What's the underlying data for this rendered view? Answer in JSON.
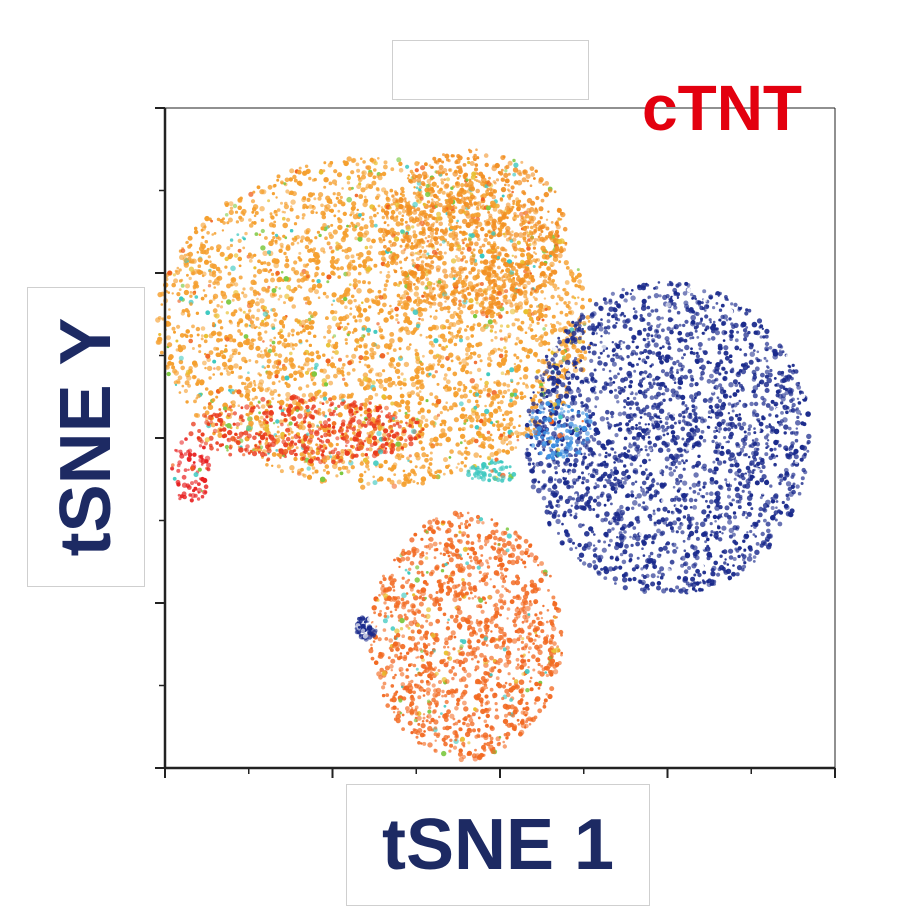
{
  "chart_data": {
    "type": "scatter",
    "title": "cTNT",
    "xlabel": "tSNE 1",
    "ylabel": "tSNE Y",
    "xlim": [
      0,
      8
    ],
    "ylim": [
      0,
      8
    ],
    "x_major_ticks": [
      0,
      2,
      4,
      6,
      8
    ],
    "x_minor_ticks": [
      1,
      3,
      5,
      7
    ],
    "y_major_ticks": [
      0,
      2,
      4,
      6,
      8
    ],
    "y_minor_ticks": [
      1,
      3,
      5,
      7
    ],
    "grid": false,
    "legend": "none",
    "color_scale": [
      "#1a2a8c",
      "#3a8ee0",
      "#3cc8c0",
      "#7cc840",
      "#e8c030",
      "#f5a030",
      "#f06020",
      "#e82020"
    ],
    "clusters": [
      {
        "center": [
          2.5,
          5.4
        ],
        "extent": [
          2.6,
          2.0
        ],
        "expression": "medium-high",
        "color": "#f5a030"
      },
      {
        "center": [
          3.7,
          6.5
        ],
        "extent": [
          1.1,
          1.0
        ],
        "expression": "high",
        "color": "#f29024"
      },
      {
        "center": [
          1.7,
          4.1
        ],
        "extent": [
          1.4,
          0.4
        ],
        "expression": "very-high",
        "color": "#ea3a1c"
      },
      {
        "center": [
          0.3,
          3.6
        ],
        "extent": [
          0.25,
          0.4
        ],
        "expression": "very-high",
        "color": "#e82020"
      },
      {
        "center": [
          6.0,
          4.0
        ],
        "extent": [
          1.7,
          1.9
        ],
        "expression": "low",
        "color": "#1a2a8c"
      },
      {
        "center": [
          4.7,
          4.1
        ],
        "extent": [
          0.4,
          0.35
        ],
        "expression": "low-medium",
        "color": "#3a8ee0"
      },
      {
        "center": [
          3.6,
          1.6
        ],
        "extent": [
          1.15,
          1.5
        ],
        "expression": "high",
        "color": "#f26a22"
      },
      {
        "center": [
          2.4,
          1.7
        ],
        "extent": [
          0.12,
          0.15
        ],
        "expression": "low",
        "color": "#1a2a8c"
      },
      {
        "center": [
          3.9,
          3.6
        ],
        "extent": [
          0.3,
          0.15
        ],
        "expression": "medium",
        "color": "#3cc8c0"
      }
    ]
  },
  "colors": {
    "axis_label": "#1d2a63",
    "marker_name": "#e3000f",
    "axis_line": "#222222"
  }
}
